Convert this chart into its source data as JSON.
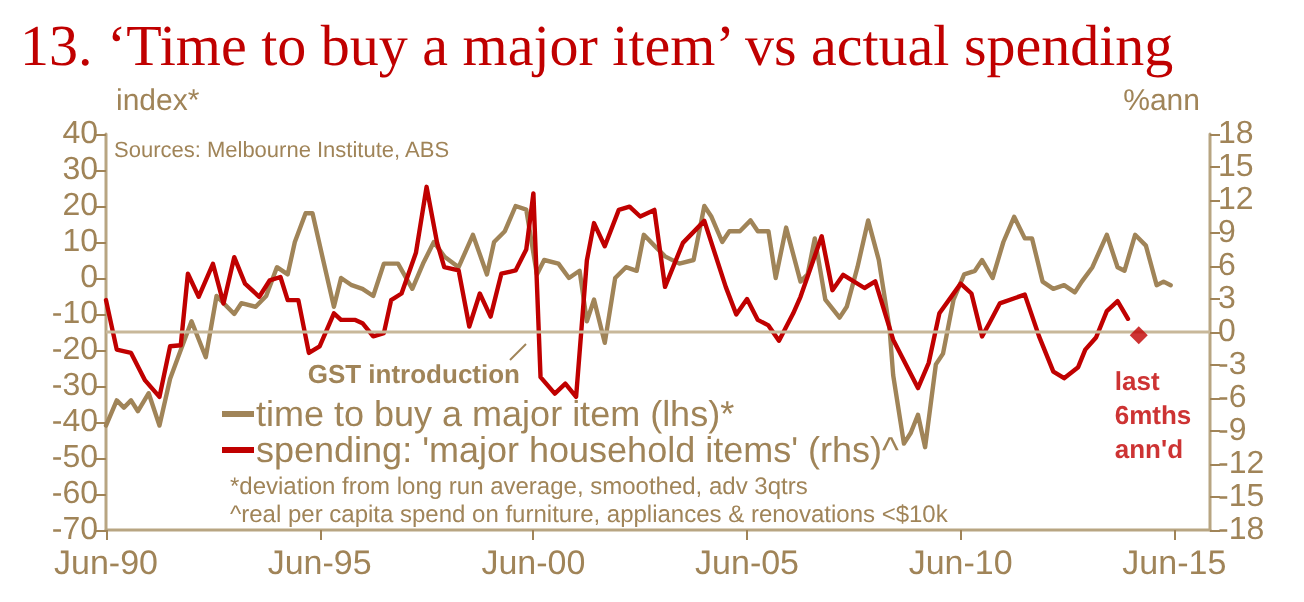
{
  "chart_data": {
    "type": "line",
    "title": "13. ‘Time to buy a major item’ vs actual spending",
    "ylabel": "index*",
    "y2label": "%ann",
    "marker": "none",
    "line_style": "solid",
    "legend": "bottom left",
    "xlim": [
      "1990-06",
      "2016-04"
    ],
    "xticks": [
      {
        "value": "1990-06",
        "label": "Jun-90"
      },
      {
        "value": "1995-06",
        "label": "Jun-95"
      },
      {
        "value": "2000-06",
        "label": "Jun-00"
      },
      {
        "value": "2005-06",
        "label": "Jun-05"
      },
      {
        "value": "2010-06",
        "label": "Jun-10"
      },
      {
        "value": "2015-06",
        "label": "Jun-15"
      }
    ],
    "ylim": [
      -70,
      40
    ],
    "yticks": [
      -70,
      -60,
      -50,
      -40,
      -30,
      -20,
      -10,
      0,
      10,
      20,
      30,
      40
    ],
    "y2lim": [
      -18,
      18
    ],
    "y2ticks": [
      -18,
      -15,
      -12,
      -9,
      -6,
      -3,
      0,
      3,
      6,
      9,
      12,
      15,
      18
    ],
    "series": [
      {
        "name": "time to buy a major item (lhs)*",
        "color": "#a08458",
        "x": [
          "1990-06",
          "1990-09",
          "1990-11",
          "1991-01",
          "1991-03",
          "1991-06",
          "1991-09",
          "1991-12",
          "1992-03",
          "1992-06",
          "1992-10",
          "1993-01",
          "1993-04",
          "1993-06",
          "1993-08",
          "1993-12",
          "1994-03",
          "1994-06",
          "1994-09",
          "1994-11",
          "1995-02",
          "1995-04",
          "1995-07",
          "1995-10",
          "1995-12",
          "1996-03",
          "1996-06",
          "1996-09",
          "1996-12",
          "1997-04",
          "1997-08",
          "1997-11",
          "1998-02",
          "1998-05",
          "1998-09",
          "1999-01",
          "1999-05",
          "1999-07",
          "1999-10",
          "2000-01",
          "2000-04",
          "2000-07",
          "2000-09",
          "2001-01",
          "2001-04",
          "2001-07",
          "2001-09",
          "2001-11",
          "2002-02",
          "2002-05",
          "2002-08",
          "2002-11",
          "2003-01",
          "2003-04",
          "2003-07",
          "2003-11",
          "2004-03",
          "2004-06",
          "2004-08",
          "2004-11",
          "2005-01",
          "2005-04",
          "2005-07",
          "2005-09",
          "2005-12",
          "2006-02",
          "2006-05",
          "2006-09",
          "2006-11",
          "2007-01",
          "2007-04",
          "2007-08",
          "2007-10",
          "2008-01",
          "2008-04",
          "2008-07",
          "2008-10",
          "2008-11",
          "2009-02",
          "2009-04",
          "2009-06",
          "2009-08",
          "2009-11",
          "2010-01",
          "2010-04",
          "2010-07",
          "2010-10",
          "2010-12",
          "2011-03",
          "2011-06",
          "2011-09",
          "2011-12",
          "2012-02",
          "2012-05",
          "2012-08",
          "2012-11",
          "2013-02",
          "2013-04",
          "2013-07",
          "2013-11",
          "2014-02",
          "2014-04",
          "2014-07",
          "2014-10",
          "2015-01",
          "2015-03",
          "2015-05"
        ],
        "values": [
          -41,
          -34,
          -36,
          -34,
          -37,
          -32,
          -41,
          -28,
          -20,
          -12,
          -22,
          -5,
          -8,
          -10,
          -7,
          -8,
          -5,
          3,
          1,
          10,
          18,
          18,
          5,
          -8,
          0,
          -2,
          -3,
          -5,
          4,
          4,
          -3,
          4,
          10,
          6,
          3,
          12,
          1,
          10,
          13,
          20,
          19,
          1,
          5,
          4,
          0,
          2,
          -12,
          -6,
          -18,
          0,
          3,
          2,
          12,
          9,
          6,
          4,
          5,
          20,
          17,
          10,
          13,
          13,
          16,
          13,
          13,
          0,
          14,
          -1,
          1,
          11,
          -6,
          -11,
          -8,
          3,
          16,
          5,
          -14,
          -27,
          -46,
          -43,
          -38,
          -47,
          -24,
          -21,
          -6,
          1,
          2,
          5,
          0,
          10,
          17,
          11,
          11,
          -1,
          -3,
          -2,
          -4,
          -1,
          3,
          12,
          3,
          2,
          12,
          9,
          -2,
          -1,
          -2
        ]
      },
      {
        "name": "spending: 'major household items' (rhs)^",
        "color": "#c00000",
        "axis": "y2",
        "x": [
          "1990-06",
          "1990-09",
          "1991-01",
          "1991-05",
          "1991-09",
          "1991-12",
          "1992-03",
          "1992-05",
          "1992-08",
          "1992-12",
          "1993-03",
          "1993-06",
          "1993-09",
          "1994-01",
          "1994-04",
          "1994-07",
          "1994-09",
          "1994-12",
          "1995-03",
          "1995-06",
          "1995-10",
          "1995-12",
          "1996-04",
          "1996-06",
          "1996-09",
          "1996-12",
          "1997-02",
          "1997-05",
          "1997-09",
          "1997-12",
          "1998-03",
          "1998-05",
          "1998-09",
          "1998-12",
          "1999-03",
          "1999-06",
          "1999-09",
          "2000-01",
          "2000-04",
          "2000-06",
          "2000-08",
          "2000-12",
          "2001-03",
          "2001-06",
          "2001-09",
          "2001-11",
          "2002-02",
          "2002-06",
          "2002-09",
          "2002-12",
          "2003-04",
          "2003-07",
          "2003-12",
          "2004-06",
          "2004-12",
          "2005-03",
          "2005-06",
          "2005-09",
          "2005-12",
          "2006-03",
          "2006-07",
          "2006-09",
          "2007-03",
          "2007-06",
          "2007-09",
          "2008-03",
          "2008-06",
          "2008-11",
          "2009-06",
          "2009-09",
          "2009-12",
          "2010-06",
          "2010-09",
          "2010-12",
          "2011-02",
          "2011-05",
          "2011-12",
          "2012-04",
          "2012-08",
          "2012-11",
          "2013-03",
          "2013-05",
          "2013-08",
          "2013-11",
          "2014-02",
          "2014-05"
        ],
        "values": [
          2.9,
          -1.6,
          -1.9,
          -4.4,
          -5.9,
          -1.3,
          -1.2,
          5.3,
          3.2,
          6.2,
          2.6,
          6.8,
          4.4,
          3.2,
          4.7,
          5.0,
          2.9,
          2.9,
          -1.9,
          -1.3,
          1.7,
          1.1,
          1.1,
          0.8,
          -0.4,
          -0.1,
          2.9,
          3.5,
          7.2,
          13.2,
          8.1,
          5.9,
          5.6,
          0.5,
          3.5,
          1.4,
          5.3,
          5.6,
          7.5,
          12.6,
          -4.1,
          -5.6,
          -4.7,
          -5.9,
          6.5,
          9.9,
          7.8,
          11.1,
          11.4,
          10.5,
          11.1,
          4.1,
          8.1,
          10.1,
          4.1,
          1.6,
          3.0,
          1.1,
          0.6,
          -0.8,
          1.7,
          3.2,
          8.7,
          3.8,
          5.2,
          4.0,
          4.6,
          -0.7,
          -5.1,
          -2.8,
          1.7,
          4.4,
          3.5,
          -0.4,
          0.8,
          2.6,
          3.4,
          -0.4,
          -3.6,
          -4.2,
          -3.2,
          -1.6,
          -0.5,
          1.9,
          2.8,
          1.2
        ]
      },
      {
        "name": "last 6mths ann'd",
        "type": "scatter",
        "marker": "diamond",
        "color": "#c00000",
        "axis": "y2",
        "x": [
          "2014-08"
        ],
        "values": [
          -0.3
        ]
      }
    ],
    "ref_lines": [
      {
        "axis": "y2",
        "value": 0,
        "color": "#c8b89a"
      }
    ],
    "annotations": [
      "Sources: Melbourne Institute, ABS",
      "GST introduction",
      "*deviation from long run average, smoothed, adv 3qtrs",
      "^real per capita spend on furniture, appliances & renovations <$10k"
    ]
  }
}
